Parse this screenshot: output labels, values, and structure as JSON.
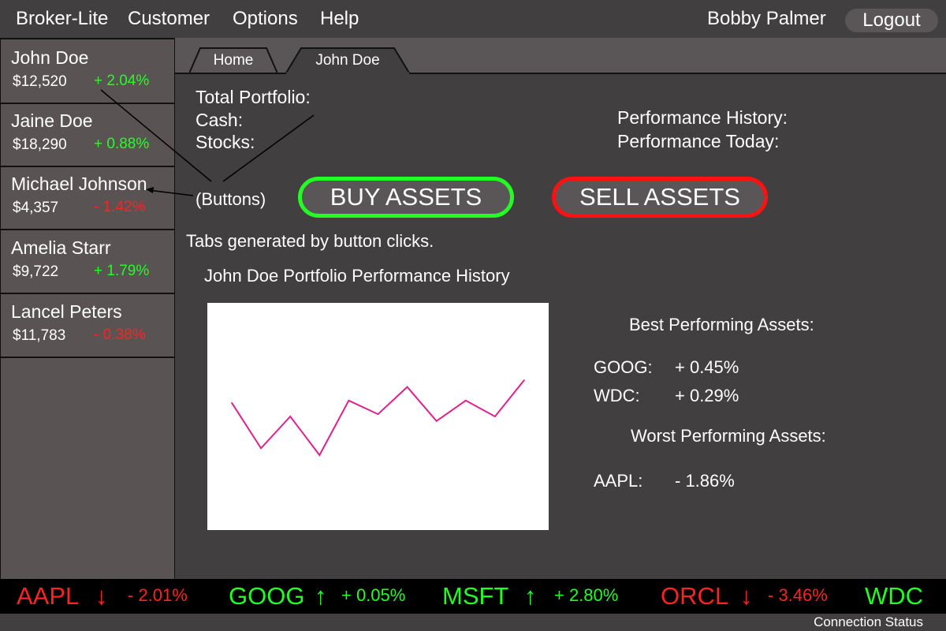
{
  "menu": {
    "app": "Broker-Lite",
    "items": [
      "Customer",
      "Options",
      "Help"
    ],
    "user": "Bobby Palmer",
    "logout": "Logout"
  },
  "customers": [
    {
      "name": "John Doe",
      "value": "$12,520",
      "change": "+ 2.04%",
      "direction": "up"
    },
    {
      "name": "Jaine Doe",
      "value": "$18,290",
      "change": "+ 0.88%",
      "direction": "up"
    },
    {
      "name": "Michael Johnson",
      "value": "$4,357",
      "change": "- 1.42%",
      "direction": "down"
    },
    {
      "name": "Amelia Starr",
      "value": "$9,722",
      "change": "+ 1.79%",
      "direction": "up"
    },
    {
      "name": "Lancel Peters",
      "value": "$11,783",
      "change": "- 0.38%",
      "direction": "down"
    }
  ],
  "tabs": [
    {
      "label": "Home",
      "active": false
    },
    {
      "label": "John Doe",
      "active": true
    }
  ],
  "portfolio": {
    "total": "Total Portfolio:",
    "cash": "Cash:",
    "stocks": "Stocks:",
    "history": "Performance History:",
    "today": "Performance Today:"
  },
  "annotations": {
    "buttons": "(Buttons)",
    "tabs_note": "Tabs generated by button clicks."
  },
  "actions": {
    "buy": "BUY ASSETS",
    "sell": "SELL ASSETS"
  },
  "chart": {
    "title": "John Doe Portfolio Performance History",
    "line_color": "#e0208a"
  },
  "chart_data": {
    "type": "line",
    "title": "John Doe Portfolio Performance History",
    "x": [
      1,
      2,
      3,
      4,
      5,
      6,
      7,
      8,
      9,
      10,
      11
    ],
    "values": [
      56,
      36,
      50,
      33,
      57,
      51,
      63,
      48,
      57,
      50,
      66
    ],
    "ylim": [
      0,
      100
    ],
    "grid": false
  },
  "best": {
    "title": "Best Performing Assets:",
    "items": [
      {
        "symbol": "GOOG:",
        "change": "+ 0.45%"
      },
      {
        "symbol": "WDC:",
        "change": "+ 0.29%"
      }
    ]
  },
  "worst": {
    "title": "Worst Performing Assets:",
    "items": [
      {
        "symbol": "AAPL:",
        "change": "- 1.86%"
      }
    ]
  },
  "ticker": [
    {
      "symbol": "AAPL",
      "arrow": "↓",
      "change": "- 2.01%",
      "direction": "down"
    },
    {
      "symbol": "GOOG",
      "arrow": "↑",
      "change": "+ 0.05%",
      "direction": "up"
    },
    {
      "symbol": "MSFT",
      "arrow": "↑",
      "change": "+ 2.80%",
      "direction": "up"
    },
    {
      "symbol": "ORCL",
      "arrow": "↓",
      "change": "- 3.46%",
      "direction": "down"
    },
    {
      "symbol": "WDC",
      "arrow": "",
      "change": "",
      "direction": "up"
    }
  ],
  "status": "Connection Status",
  "colors": {
    "positive": "#22ff22",
    "negative": "#ff2222",
    "background": "#413f40",
    "panel": "#595354"
  }
}
